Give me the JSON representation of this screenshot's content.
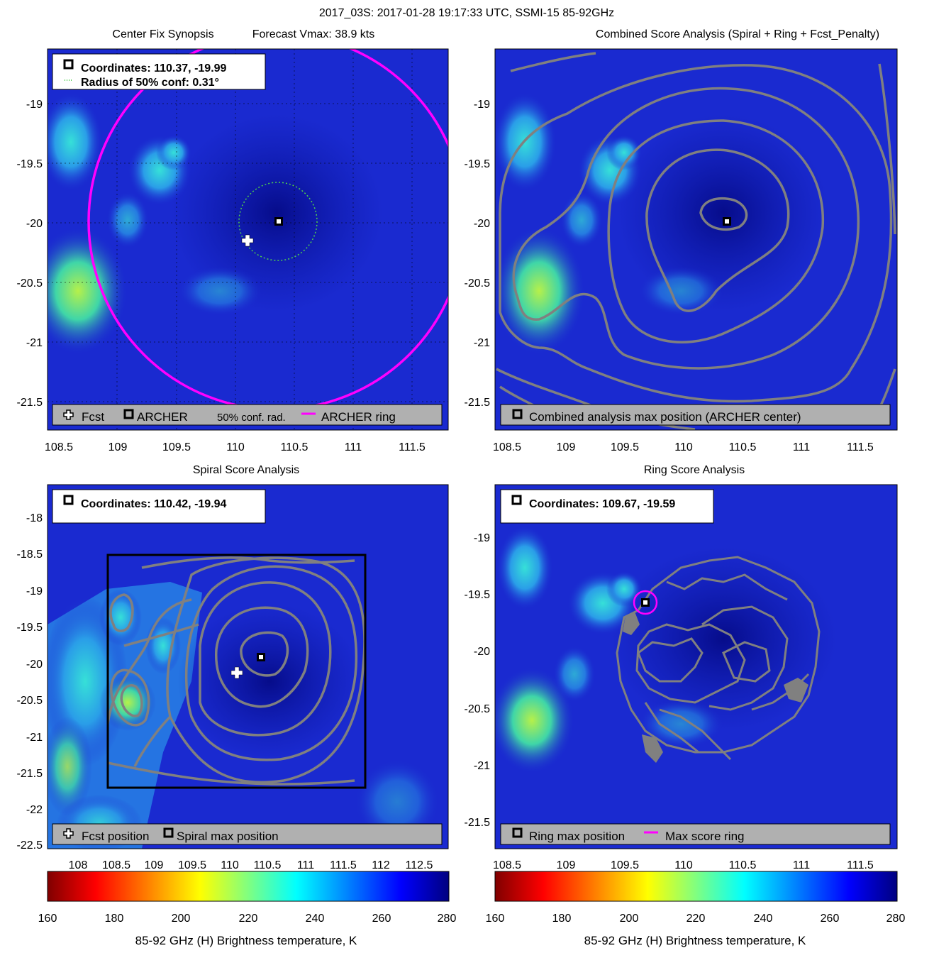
{
  "figure_title": "2017_03S: 2017-01-28 19:17:33 UTC, SSMI-15 85-92GHz",
  "colors": {
    "background_blue": "#1a2ad0",
    "cold_green": "#9ce84e",
    "ring_magenta": "#ff00ff",
    "contour_gray": "#808080",
    "legend_bg": "#b0b0b0",
    "conf_circle": "#4fd04f"
  },
  "panels": [
    {
      "id": "center-fix",
      "title_left": "Center Fix Synopsis",
      "title_right": "Forecast Vmax: 38.9 kts",
      "info_lines": [
        "Coordinates: 110.37, -19.99",
        "Radius of 50% conf: 0.31°"
      ],
      "legend": [
        "Fcst",
        "ARCHER",
        "50% conf. rad.",
        "ARCHER ring"
      ],
      "x_ticks": [
        "108.5",
        "109",
        "109.5",
        "110",
        "110.5",
        "111",
        "111.5"
      ],
      "y_ticks": [
        "-19",
        "-19.5",
        "-20",
        "-20.5",
        "-21",
        "-21.5"
      ]
    },
    {
      "id": "combined-score",
      "title": "Combined Score Analysis (Spiral + Ring + Fcst_Penalty)",
      "legend": [
        "Combined analysis max position (ARCHER center)"
      ],
      "x_ticks": [
        "108.5",
        "109",
        "109.5",
        "110",
        "110.5",
        "111",
        "111.5"
      ],
      "y_ticks": [
        "-19",
        "-19.5",
        "-20",
        "-20.5",
        "-21",
        "-21.5"
      ]
    },
    {
      "id": "spiral-score",
      "title": "Spiral Score Analysis",
      "info_lines": [
        "Coordinates: 110.42, -19.94"
      ],
      "legend": [
        "Fcst position",
        "Spiral max position"
      ],
      "x_ticks": [
        "108",
        "108.5",
        "109",
        "109.5",
        "110",
        "110.5",
        "111",
        "111.5",
        "112",
        "112.5"
      ],
      "y_ticks": [
        "-18",
        "-18.5",
        "-19",
        "-19.5",
        "-20",
        "-20.5",
        "-21",
        "-21.5",
        "-22",
        "-22.5"
      ]
    },
    {
      "id": "ring-score",
      "title": "Ring Score Analysis",
      "info_lines": [
        "Coordinates: 109.67, -19.59"
      ],
      "legend": [
        "Ring max position",
        "Max score ring"
      ],
      "x_ticks": [
        "108.5",
        "109",
        "109.5",
        "110",
        "110.5",
        "111",
        "111.5"
      ],
      "y_ticks": [
        "-19",
        "-19.5",
        "-20",
        "-20.5",
        "-21",
        "-21.5"
      ]
    }
  ],
  "colorbar": {
    "label": "85-92 GHz (H) Brightness temperature, K",
    "ticks": [
      "160",
      "180",
      "200",
      "220",
      "240",
      "260",
      "280"
    ]
  },
  "chart_data": [
    {
      "type": "heatmap",
      "title": "Center Fix Synopsis",
      "xlim": [
        108.3,
        111.8
      ],
      "ylim": [
        -21.75,
        -18.6
      ],
      "archer_center": [
        110.37,
        -19.99
      ],
      "forecast_position": [
        110.1,
        -20.14
      ],
      "conf_radius_deg": 0.31,
      "forecast_vmax_kts": 38.9
    },
    {
      "type": "heatmap",
      "title": "Combined Score Analysis (Spiral + Ring + Fcst_Penalty)",
      "xlim": [
        108.3,
        111.8
      ],
      "ylim": [
        -21.75,
        -18.6
      ],
      "max_position": [
        110.37,
        -19.99
      ]
    },
    {
      "type": "heatmap",
      "title": "Spiral Score Analysis",
      "xlim": [
        107.6,
        112.85
      ],
      "ylim": [
        -22.55,
        -17.6
      ],
      "max_position": [
        110.42,
        -19.94
      ],
      "forecast_position": [
        110.1,
        -20.14
      ]
    },
    {
      "type": "heatmap",
      "title": "Ring Score Analysis",
      "xlim": [
        108.3,
        111.8
      ],
      "ylim": [
        -21.75,
        -18.6
      ],
      "max_position": [
        109.67,
        -19.59
      ]
    }
  ]
}
